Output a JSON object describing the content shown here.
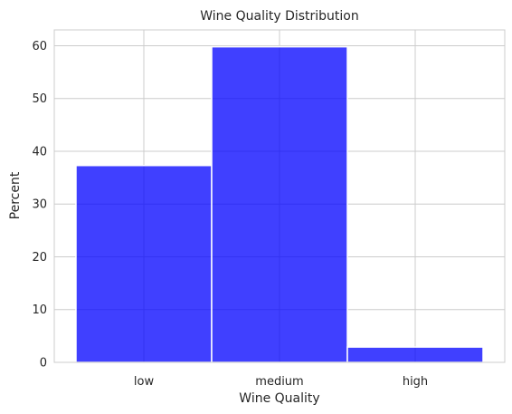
{
  "chart_data": {
    "type": "bar",
    "title": "Wine Quality Distribution",
    "xlabel": "Wine Quality",
    "ylabel": "Percent",
    "categories": [
      "low",
      "medium",
      "high"
    ],
    "values": [
      37.3,
      59.8,
      2.9
    ],
    "ylim": [
      0,
      63
    ],
    "yticks": [
      0,
      10,
      20,
      30,
      40,
      50,
      60
    ],
    "grid": true,
    "bar_color": "#0000ff",
    "bar_opacity": 0.75,
    "grid_color": "#cccccc",
    "legend": "none"
  }
}
